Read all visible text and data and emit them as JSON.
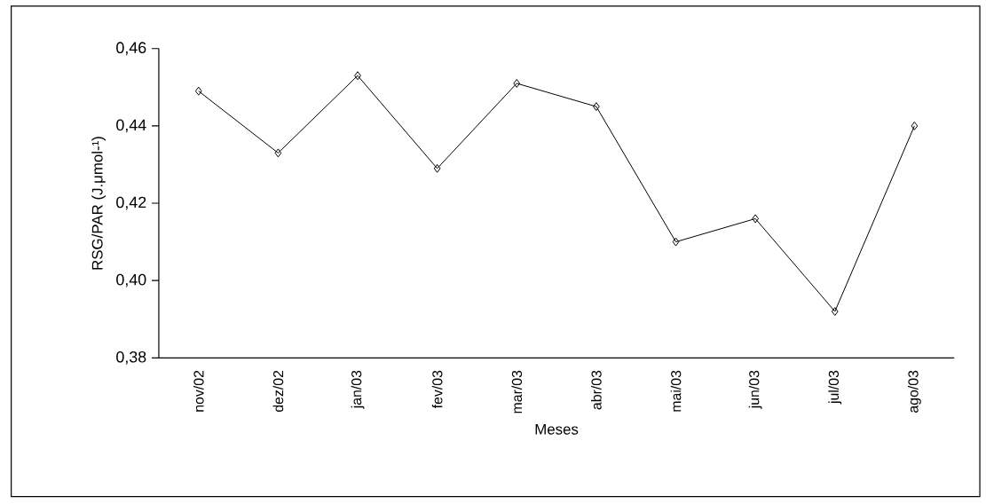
{
  "chart_data": {
    "type": "line",
    "xlabel": "Meses",
    "ylabel": "RSG/PAR (J.μmol-¹)",
    "categories": [
      "nov/02",
      "dez/02",
      "jan/03",
      "fev/03",
      "mar/03",
      "abr/03",
      "mai/03",
      "jun/03",
      "jul/03",
      "ago/03"
    ],
    "values": [
      0.449,
      0.433,
      0.453,
      0.429,
      0.451,
      0.445,
      0.41,
      0.416,
      0.392,
      0.44
    ],
    "color": "#000000",
    "marker": "diamond",
    "line_style": "solid",
    "ylim": [
      0.38,
      0.46
    ],
    "yticks": [
      {
        "value": 0.38,
        "label": "0,38"
      },
      {
        "value": 0.4,
        "label": "0,40"
      },
      {
        "value": 0.42,
        "label": "0,42"
      },
      {
        "value": 0.44,
        "label": "0,44"
      },
      {
        "value": 0.46,
        "label": "0,46"
      }
    ]
  }
}
